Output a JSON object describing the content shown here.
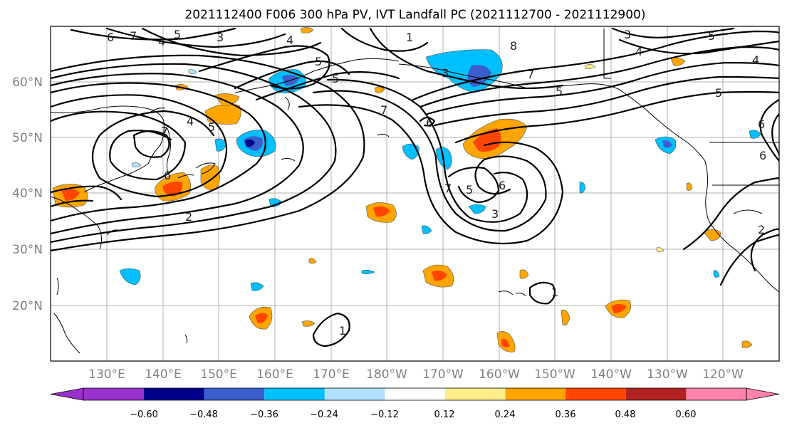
{
  "title": "2021112400 F006 300 hPa PV, IVT Landfall PC (2021112700 - 2021112900)",
  "lat_labels": [
    "60°N",
    "50°N",
    "40°N",
    "30°N",
    "20°N"
  ],
  "lon_labels": [
    "130°E",
    "140°E",
    "150°E",
    "160°E",
    "170°E",
    "180°W",
    "170°W",
    "160°W",
    "150°W",
    "140°W",
    "130°W",
    "120°W"
  ],
  "colorbar": {
    "tick_labels": [
      "−0.60",
      "−0.48",
      "−0.36",
      "−0.24",
      "−0.12",
      "0.12",
      "0.24",
      "0.36",
      "0.48",
      "0.60"
    ],
    "colors": [
      "#9932cc",
      "#00008b",
      "#3a5fcd",
      "#00bfff",
      "#b0e2ff",
      "#ffffff",
      "#ffec8b",
      "#ffa500",
      "#ff4500",
      "#b22222",
      "#ff82ab"
    ]
  },
  "contour_labels": [
    {
      "text": "6"
    },
    {
      "text": "7"
    },
    {
      "text": "4"
    },
    {
      "text": "5"
    },
    {
      "text": "3"
    },
    {
      "text": "5"
    },
    {
      "text": "1"
    },
    {
      "text": "3"
    },
    {
      "text": "8"
    },
    {
      "text": "7"
    },
    {
      "text": "3"
    },
    {
      "text": "4"
    },
    {
      "text": "5"
    },
    {
      "text": "4"
    },
    {
      "text": "7"
    },
    {
      "text": "6"
    },
    {
      "text": "6"
    },
    {
      "text": "5"
    },
    {
      "text": "4"
    },
    {
      "text": "5"
    },
    {
      "text": "7"
    },
    {
      "text": "6"
    },
    {
      "text": "2"
    },
    {
      "text": "7"
    },
    {
      "text": "5"
    },
    {
      "text": "6"
    },
    {
      "text": "3"
    },
    {
      "text": "1"
    },
    {
      "text": "1"
    },
    {
      "text": "5"
    },
    {
      "text": "4"
    },
    {
      "text": "5"
    },
    {
      "text": "6"
    },
    {
      "text": "2"
    }
  ]
}
